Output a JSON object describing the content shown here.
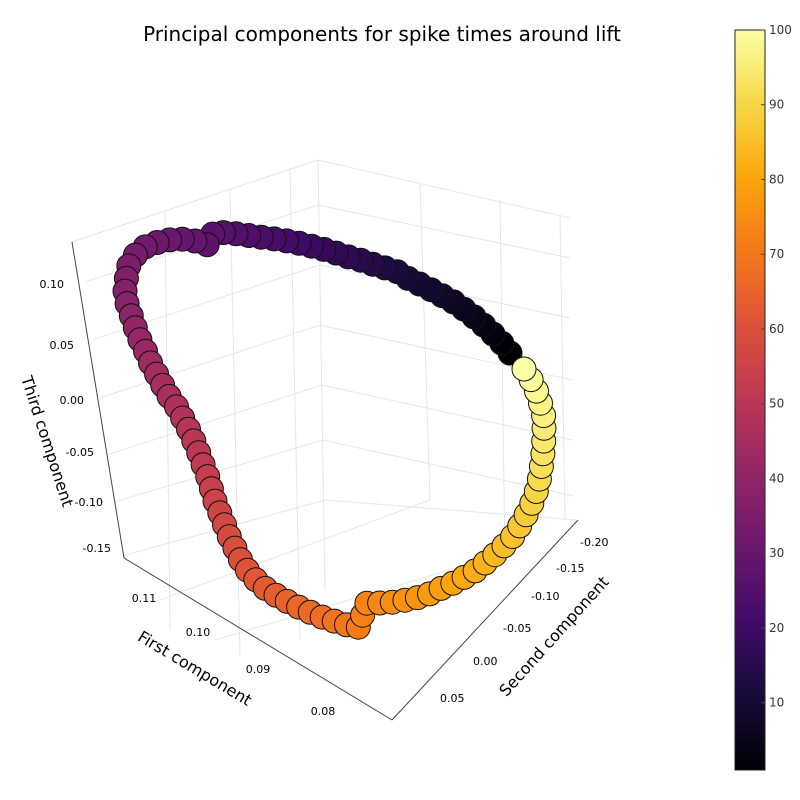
{
  "chart_data": {
    "type": "scatter",
    "title": "Principal components for spike times around lift",
    "xlabel": "Second component",
    "ylabel": "First component",
    "zlabel": "Third component",
    "x_ticks": [
      "-0.20",
      "-0.15",
      "-0.10",
      "-0.05",
      "0.00",
      "0.05"
    ],
    "y_ticks": [
      "0.11",
      "0.10",
      "0.09",
      "0.08"
    ],
    "z_ticks": [
      "0.10",
      "0.05",
      "0.00",
      "-0.05",
      "-0.10",
      "-0.15"
    ],
    "colorbar": {
      "colormap": "inferno",
      "min": 1,
      "max": 100,
      "ticks": [
        "100",
        "90",
        "80",
        "70",
        "60",
        "50",
        "40",
        "30",
        "20",
        "10"
      ]
    },
    "point_values": [
      1,
      2,
      3,
      4,
      5,
      6,
      7,
      8,
      9,
      10,
      11,
      12,
      13,
      14,
      15,
      16,
      17,
      18,
      19,
      20,
      21,
      22,
      23,
      24,
      25,
      26,
      27,
      28,
      29,
      30,
      31,
      32,
      33,
      34,
      35,
      36,
      37,
      38,
      39,
      40,
      41,
      42,
      43,
      44,
      45,
      46,
      47,
      48,
      49,
      50,
      51,
      52,
      53,
      54,
      55,
      56,
      57,
      58,
      59,
      60,
      61,
      62,
      63,
      64,
      65,
      66,
      67,
      68,
      69,
      70,
      71,
      72,
      73,
      74,
      75,
      76,
      77,
      78,
      79,
      80,
      81,
      82,
      83,
      84,
      85,
      86,
      87,
      88,
      89,
      90,
      91,
      92,
      93,
      94,
      95,
      96,
      97,
      98,
      99,
      100
    ],
    "legend": "none",
    "grid": true
  }
}
